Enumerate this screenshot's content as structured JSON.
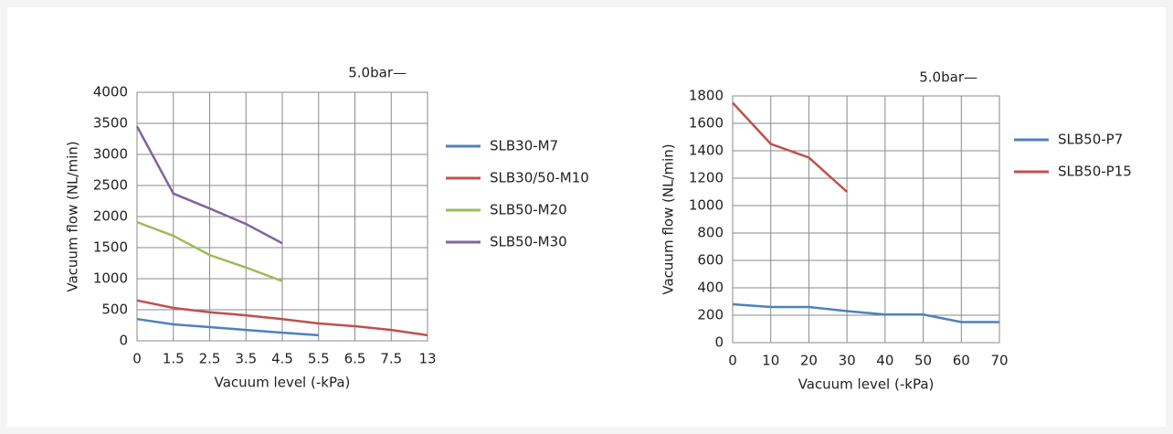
{
  "chart_data": [
    {
      "type": "line",
      "annotation": "5.0bar—",
      "x_label": "Vacuum level (-kPa)",
      "y_label": "Vacuum flow (NL/min)",
      "categories": [
        "0",
        "1.5",
        "2.5",
        "3.5",
        "4.5",
        "5.5",
        "6.5",
        "7.5",
        "13"
      ],
      "series": [
        {
          "name": "SLB30-M7",
          "color": "#4f81bd",
          "values": [
            350,
            265,
            220,
            175,
            130,
            90,
            null,
            null,
            null
          ]
        },
        {
          "name": "SLB30/50-M10",
          "color": "#c0504d",
          "values": [
            650,
            530,
            460,
            410,
            350,
            280,
            235,
            175,
            90
          ]
        },
        {
          "name": "SLB50-M20",
          "color": "#9bbb59",
          "values": [
            1910,
            1690,
            1380,
            1180,
            960,
            null,
            null,
            null,
            null
          ]
        },
        {
          "name": "SLB50-M30",
          "color": "#8064a2",
          "values": [
            3450,
            2370,
            2130,
            1880,
            1570,
            null,
            null,
            null,
            null
          ]
        }
      ],
      "ylim": [
        0,
        4000
      ],
      "yticks": [
        0,
        500,
        1000,
        1500,
        2000,
        2500,
        3000,
        3500,
        4000
      ],
      "grid": true
    },
    {
      "type": "line",
      "annotation": "5.0bar—",
      "x_label": "Vacuum level (-kPa)",
      "y_label": "Vacuum flow (NL/min)",
      "x": [
        0,
        10,
        20,
        30,
        40,
        50,
        60,
        70
      ],
      "series": [
        {
          "name": "SLB50-P7",
          "color": "#4f81bd",
          "values": [
            280,
            260,
            260,
            230,
            205,
            205,
            150,
            150
          ]
        },
        {
          "name": "SLB50-P15",
          "color": "#c0504d",
          "values": [
            1750,
            1450,
            1350,
            1100,
            null,
            null,
            null,
            null
          ]
        }
      ],
      "xlim": [
        0,
        70
      ],
      "xticks": [
        0,
        10,
        20,
        30,
        40,
        50,
        60,
        70
      ],
      "ylim": [
        0,
        1800
      ],
      "yticks": [
        0,
        200,
        400,
        600,
        800,
        1000,
        1200,
        1400,
        1600,
        1800
      ],
      "grid": true
    }
  ]
}
